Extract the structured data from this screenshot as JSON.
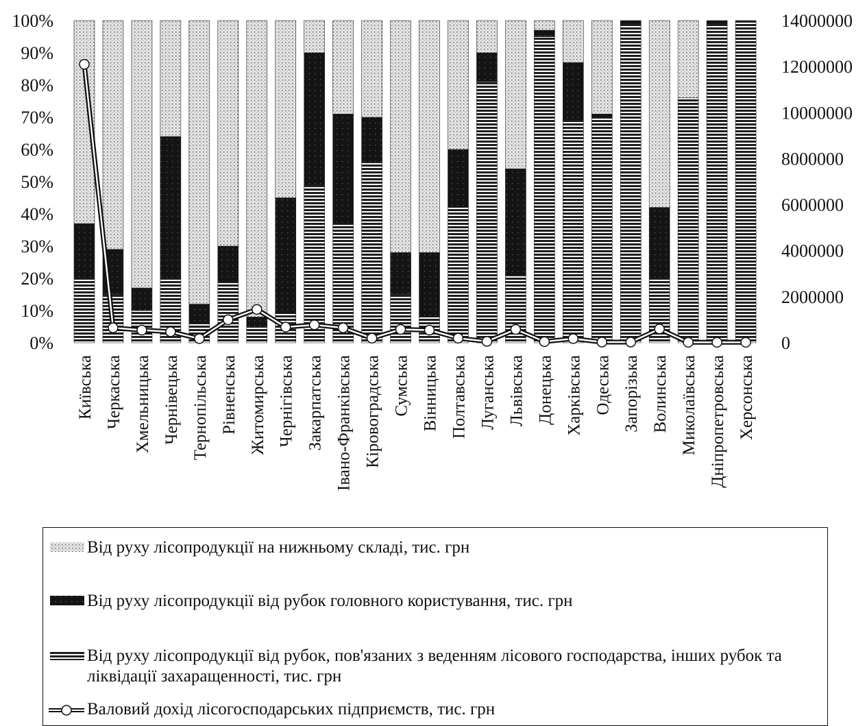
{
  "chart_data": {
    "type": "bar",
    "stacked": true,
    "percent_stacked": true,
    "categories": [
      "Київська",
      "Черкаська",
      "Хмельницька",
      "Чернівецька",
      "Тернопільська",
      "Рівненська",
      "Житомирська",
      "Чернігівська",
      "Закарпатська",
      "Івано-Франківська",
      "Кіровоградська",
      "Сумська",
      "Вінницька",
      "Полтавська",
      "Луганська",
      "Львівська",
      "Донецька",
      "Харківська",
      "Одеська",
      "Запорізька",
      "Волинська",
      "Миколаївська",
      "Дніпропетровська",
      "Херсонська"
    ],
    "series": [
      {
        "name": "Від руху лісопродукції від рубок, пов'язаних з веденням лісового господарства, інших рубок та ліквідації захаращенності, тис. грн",
        "pattern": "hstripes",
        "values": [
          20,
          15,
          10,
          20,
          6,
          19,
          5,
          9,
          49,
          37,
          56,
          15,
          8,
          42,
          81,
          21,
          95,
          69,
          70,
          99,
          20,
          76,
          99,
          100
        ]
      },
      {
        "name": "Від руху лісопродукції від рубок головного користування, тис. грн",
        "pattern": "dark",
        "values": [
          17,
          14,
          7,
          44,
          6,
          11,
          3,
          36,
          41,
          34,
          14,
          13,
          20,
          18,
          9,
          33,
          2,
          18,
          1,
          1,
          22,
          0,
          1,
          0
        ]
      },
      {
        "name": "Від руху лісопродукції на нижньому складі, тис. грн",
        "pattern": "dots",
        "values": [
          63,
          71,
          83,
          36,
          88,
          70,
          92,
          55,
          10,
          29,
          30,
          72,
          72,
          40,
          10,
          46,
          3,
          13,
          29,
          0,
          58,
          24,
          0,
          0
        ]
      }
    ],
    "line": {
      "name": "Валовий дохід лісогосподарських підприємств, тис. грн",
      "axis": "right",
      "values": [
        12100000,
        650000,
        550000,
        480000,
        180000,
        1000000,
        1450000,
        680000,
        780000,
        650000,
        200000,
        580000,
        550000,
        200000,
        60000,
        580000,
        50000,
        180000,
        30000,
        30000,
        600000,
        20000,
        20000,
        20000
      ]
    },
    "y_left": {
      "min": 0,
      "max": 100,
      "step": 10,
      "tick_labels": [
        "0%",
        "10%",
        "20%",
        "30%",
        "40%",
        "50%",
        "60%",
        "70%",
        "80%",
        "90%",
        "100%"
      ]
    },
    "y_right": {
      "min": 0,
      "max": 14000000,
      "step": 2000000,
      "tick_labels": [
        "0",
        "2000000",
        "4000000",
        "6000000",
        "8000000",
        "10000000",
        "12000000",
        "14000000"
      ]
    },
    "legend_position": "bottom"
  },
  "legend": {
    "items": [
      {
        "label": "Від руху лісопродукції на нижньому складі, тис. грн",
        "swatch": "dots"
      },
      {
        "label": "Від руху лісопродукції від рубок головного користування, тис. грн",
        "swatch": "dark"
      },
      {
        "label": "Від руху лісопродукції від рубок, пов'язаних з веденням лісового господарства, інших рубок та ліквідації захаращенності, тис. грн",
        "swatch": "hstripes"
      },
      {
        "label": "Валовий дохід лісогосподарських підприємств, тис. грн",
        "swatch": "line"
      }
    ]
  },
  "colors": {
    "stripes_dark": "#1e1e1e",
    "dots_bg": "#e3e3e3",
    "dots_fg": "#555555",
    "dark_bg": "#141414",
    "line": "#111111",
    "marker_fill": "#ffffff"
  }
}
